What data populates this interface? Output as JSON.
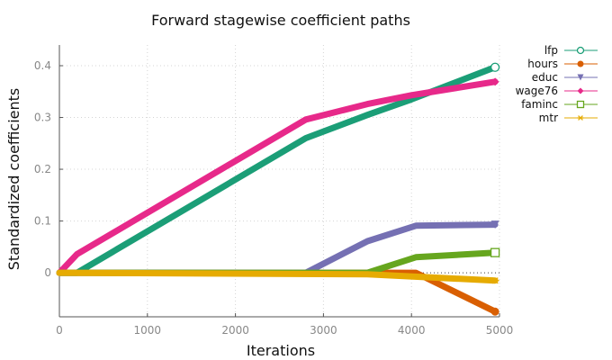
{
  "chart_data": {
    "type": "line",
    "title": "Forward stagewise coefficient paths",
    "xlabel": "Iterations",
    "ylabel": "Standardized coefficients",
    "xlim": [
      0,
      5000
    ],
    "ylim": [
      -0.085,
      0.44
    ],
    "xticks": [
      0,
      1000,
      2000,
      3000,
      4000,
      5000
    ],
    "xtick_labels": [
      "0",
      "1000",
      "2000",
      "3000",
      "4000",
      "5000"
    ],
    "yticks": [
      0,
      0.1,
      0.2,
      0.3,
      0.4
    ],
    "ytick_labels": [
      "0",
      "0.1",
      "0.2",
      "0.3",
      "0.4"
    ],
    "grid": true,
    "legend_position": "top-right, outside plot",
    "series": [
      {
        "name": "lfp",
        "color": "#1b9e77",
        "marker": "open-circle",
        "x": [
          0,
          200,
          2800,
          3500,
          4000,
          4950
        ],
        "y": [
          0,
          0,
          0.26,
          0.305,
          0.335,
          0.397
        ]
      },
      {
        "name": "hours",
        "color": "#d95f02",
        "marker": "filled-circle",
        "x": [
          0,
          3500,
          4050,
          4950
        ],
        "y": [
          0,
          0,
          0,
          -0.075
        ]
      },
      {
        "name": "educ",
        "color": "#7570b3",
        "marker": "filled-triangle-down",
        "x": [
          0,
          2800,
          3500,
          4050,
          4950
        ],
        "y": [
          0,
          0,
          0.061,
          0.091,
          0.093
        ]
      },
      {
        "name": "wage76",
        "color": "#e7298a",
        "marker": "filled-diamond",
        "x": [
          0,
          200,
          2800,
          3500,
          4000,
          4950
        ],
        "y": [
          0,
          0.036,
          0.296,
          0.326,
          0.343,
          0.369
        ]
      },
      {
        "name": "faminc",
        "color": "#66a61e",
        "marker": "open-square",
        "x": [
          0,
          3500,
          4050,
          4950
        ],
        "y": [
          0,
          0,
          0.03,
          0.039
        ]
      },
      {
        "name": "mtr",
        "color": "#e6ab02",
        "marker": "asterisk",
        "x": [
          0,
          3500,
          4950
        ],
        "y": [
          0,
          -0.003,
          -0.015
        ]
      }
    ]
  }
}
